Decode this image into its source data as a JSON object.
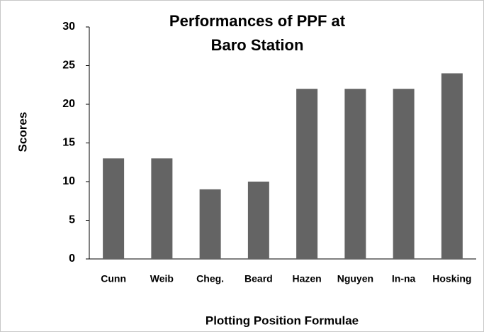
{
  "chart_data": {
    "type": "bar",
    "title": [
      "Performances of PPF at",
      "Baro Station"
    ],
    "x_label": "Plotting Position Formulae",
    "y_label": "Scores",
    "categories": [
      "Cunn",
      "Weib",
      "Cheg.",
      "Beard",
      "Hazen",
      "Nguyen",
      "In-na",
      "Hosking"
    ],
    "values": [
      13,
      13,
      9,
      10,
      22,
      22,
      22,
      24
    ],
    "color": "#646464",
    "ylim": [
      0,
      30
    ],
    "yticks": [
      0,
      5,
      10,
      15,
      20,
      25,
      30
    ],
    "grid": false
  }
}
